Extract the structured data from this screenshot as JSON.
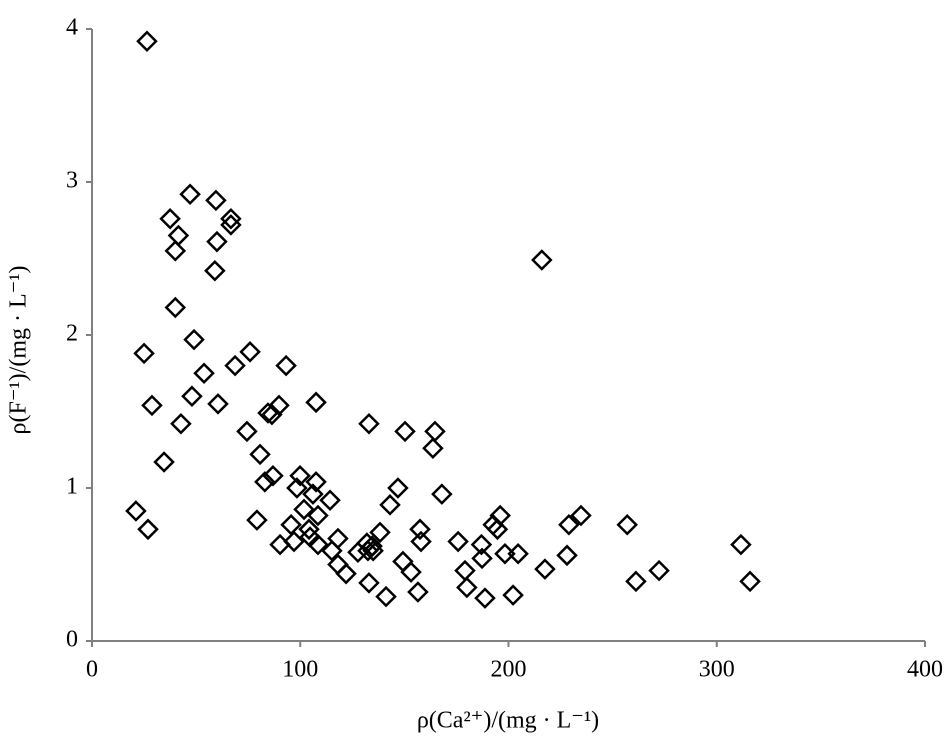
{
  "chart_data": {
    "type": "scatter",
    "xlabel": "ρ(Ca²⁺)/(mg · L⁻¹)",
    "ylabel": "ρ(F⁻¹)/(mg · L⁻¹)",
    "xlim": [
      0,
      400
    ],
    "xticks": [
      0,
      100,
      200,
      300,
      400
    ],
    "ylim": [
      0,
      4
    ],
    "yticks": [
      0,
      1,
      2,
      3,
      4
    ],
    "marker_color": "#000000",
    "x": [
      26.4,
      47.1,
      59.5,
      66.7,
      66.7,
      37.5,
      41.5,
      60,
      40,
      59,
      216,
      40,
      49,
      25,
      75.9,
      93.2,
      68.7,
      53.8,
      48,
      28.8,
      60.5,
      107.6,
      89.8,
      84.5,
      86.4,
      42.7,
      133,
      150.3,
      74.4,
      164.7,
      163.7,
      80.7,
      34.6,
      99.9,
      86.9,
      107.6,
      83,
      98.4,
      146.9,
      106.1,
      168,
      114.3,
      101.8,
      143.1,
      108.5,
      196,
      234.8,
      21.1,
      79.2,
      95.6,
      229,
      257,
      192.6,
      194.7,
      26.9,
      157.5,
      104.2,
      138.3,
      118.1,
      104.7,
      90.3,
      97,
      108.5,
      158,
      132,
      134.5,
      135,
      175.8,
      187,
      311.6,
      132.5,
      127.7,
      115.2,
      198.3,
      204.6,
      228.1,
      187.3,
      149.3,
      118.1,
      217.5,
      179.1,
      153.2,
      122,
      272.3,
      261.2,
      316,
      133,
      180,
      156.5,
      141.2,
      188.7,
      202.2
    ],
    "y": [
      3.92,
      2.92,
      2.88,
      2.76,
      2.72,
      2.76,
      2.65,
      2.61,
      2.55,
      2.42,
      2.49,
      2.18,
      1.97,
      1.88,
      1.89,
      1.8,
      1.8,
      1.75,
      1.6,
      1.54,
      1.55,
      1.56,
      1.54,
      1.49,
      1.48,
      1.42,
      1.42,
      1.37,
      1.37,
      1.37,
      1.26,
      1.22,
      1.17,
      1.08,
      1.08,
      1.04,
      1.04,
      1,
      1,
      0.96,
      0.96,
      0.92,
      0.86,
      0.89,
      0.82,
      0.82,
      0.82,
      0.85,
      0.79,
      0.76,
      0.76,
      0.76,
      0.76,
      0.73,
      0.73,
      0.73,
      0.73,
      0.71,
      0.67,
      0.68,
      0.63,
      0.65,
      0.63,
      0.65,
      0.64,
      0.62,
      0.59,
      0.65,
      0.63,
      0.63,
      0.59,
      0.58,
      0.59,
      0.57,
      0.57,
      0.56,
      0.54,
      0.52,
      0.5,
      0.47,
      0.46,
      0.45,
      0.44,
      0.46,
      0.39,
      0.39,
      0.38,
      0.35,
      0.32,
      0.29,
      0.28,
      0.3
    ]
  }
}
